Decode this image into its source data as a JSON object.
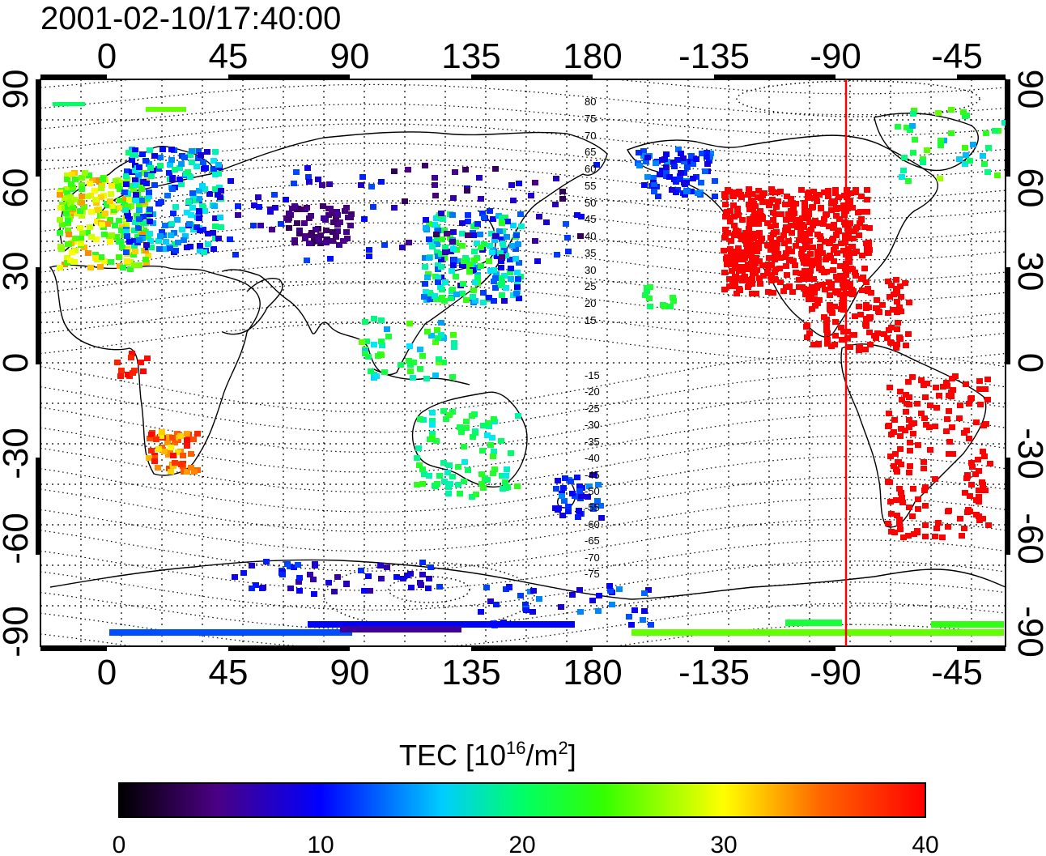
{
  "title": "2001-02-10/17:40:00",
  "x_ticks": [
    "0",
    "45",
    "90",
    "135",
    "180",
    "-135",
    "-90",
    "-45"
  ],
  "y_ticks": [
    "90",
    "60",
    "30",
    "0",
    "-30",
    "-60",
    "-90"
  ],
  "colorbar": {
    "label_main": "TEC  [10",
    "label_sup": "16",
    "label_mid": "/m",
    "label_sup2": "2",
    "label_end": "]",
    "ticks": [
      "0",
      "10",
      "20",
      "30",
      "40"
    ],
    "range": [
      0,
      40
    ],
    "colormap": [
      "#000000",
      "#4b0082",
      "#0000ff",
      "#00ffff",
      "#00ff00",
      "#ffff00",
      "#ff0000"
    ]
  },
  "contour_labels_north": [
    "80",
    "75",
    "70",
    "65",
    "60",
    "55",
    "50",
    "45",
    "40",
    "35",
    "30",
    "25",
    "20",
    "15"
  ],
  "contour_labels_south": [
    "-15",
    "-20",
    "-25",
    "-30",
    "-35",
    "-40",
    "-45",
    "-50",
    "-55",
    "-60",
    "-65",
    "-70",
    "-75"
  ],
  "marker_line_longitude": -85,
  "marker_line_color": "#ff0000"
}
